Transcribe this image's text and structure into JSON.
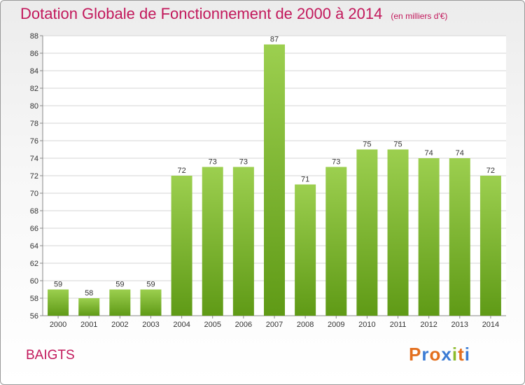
{
  "header": {
    "title": "Dotation Globale de Fonctionnement de 2000 à 2014",
    "unit": "(en milliers d'€)"
  },
  "footer": {
    "commune": "BAIGTS",
    "logo": [
      "P",
      "r",
      "o",
      "x",
      "i",
      "t",
      "i"
    ]
  },
  "colors": {
    "title": "#c2185b",
    "bar_top": "#9ccf4f",
    "bar_bottom": "#5f9a16",
    "logo": [
      "#e36f1e",
      "#3b7bd4",
      "#e36f1e",
      "#3b7bd4",
      "#8cbb2c",
      "#e36f1e",
      "#3b7bd4"
    ]
  },
  "chart_data": {
    "type": "bar",
    "title": "Dotation Globale de Fonctionnement de 2000 à 2014",
    "xlabel": "",
    "ylabel": "",
    "categories": [
      "2000",
      "2001",
      "2002",
      "2003",
      "2004",
      "2005",
      "2006",
      "2007",
      "2008",
      "2009",
      "2010",
      "2011",
      "2012",
      "2013",
      "2014"
    ],
    "values": [
      59,
      58,
      59,
      59,
      72,
      73,
      73,
      87,
      71,
      73,
      75,
      75,
      74,
      74,
      72
    ],
    "ylim": [
      56,
      88
    ],
    "yticks": [
      56,
      58,
      60,
      62,
      64,
      66,
      68,
      70,
      72,
      74,
      76,
      78,
      80,
      82,
      84,
      86,
      88
    ],
    "grid": true,
    "legend": "none"
  }
}
